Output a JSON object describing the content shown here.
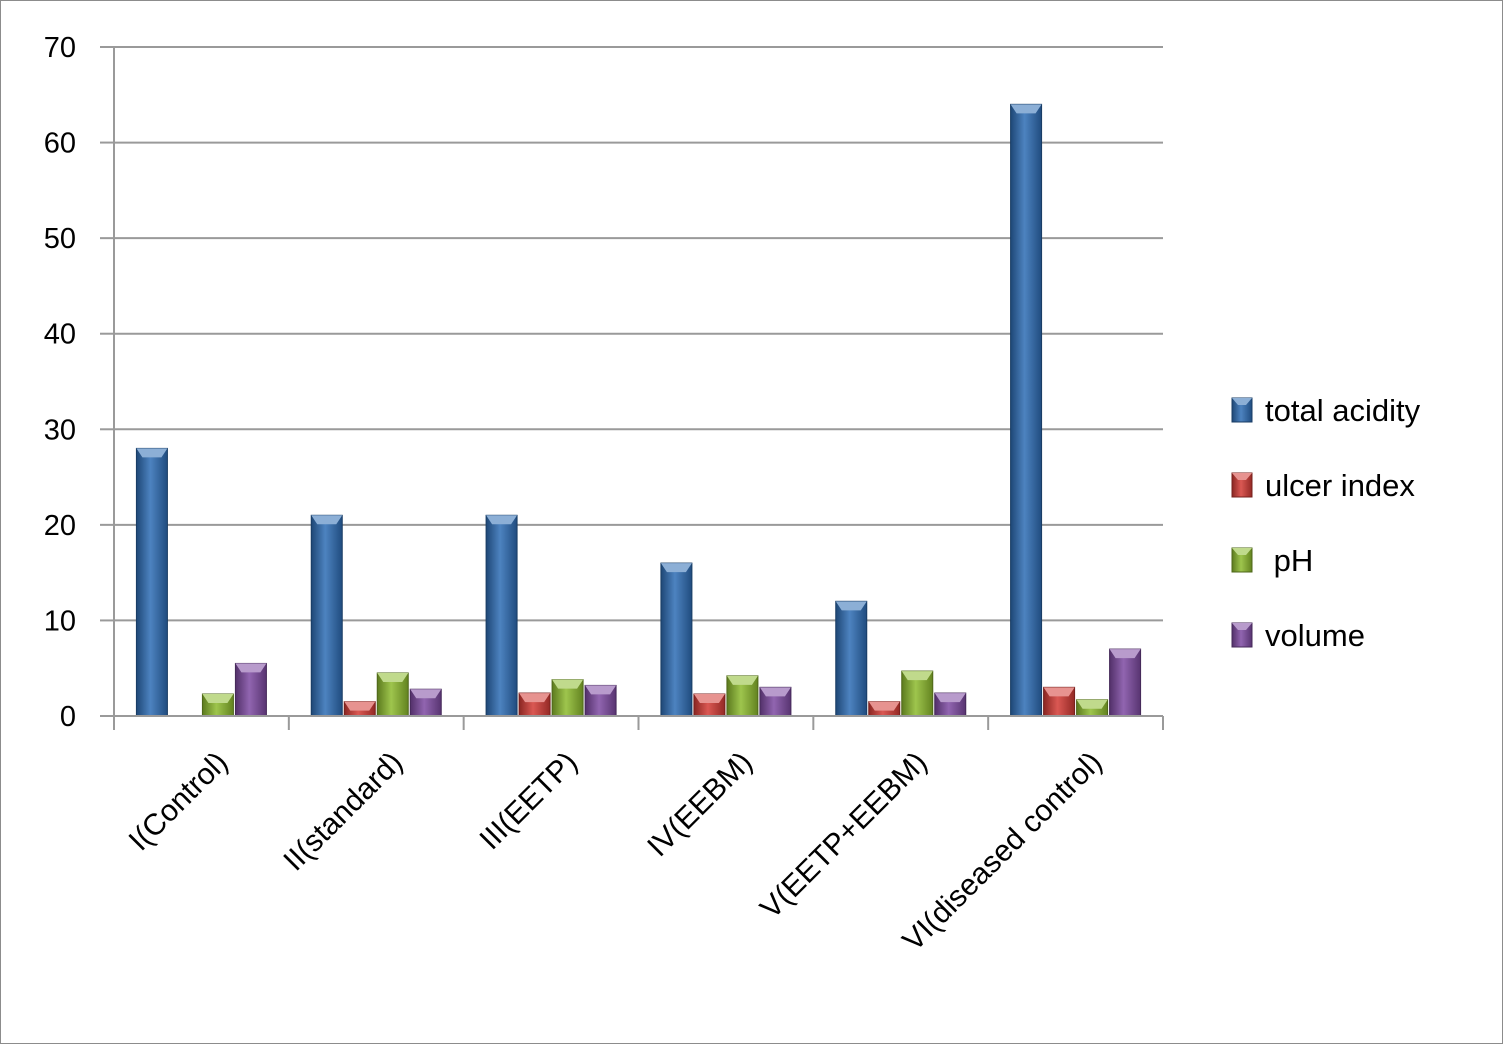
{
  "chart_data": {
    "type": "bar",
    "title": "",
    "xlabel": "",
    "ylabel": "",
    "ylim": [
      0,
      70
    ],
    "yticks": [
      0,
      10,
      20,
      30,
      40,
      50,
      60,
      70
    ],
    "grid": true,
    "legend_position": "right",
    "categories": [
      "I(Control)",
      "II(standard)",
      "III(EETP)",
      "IV(EEBM)",
      "V(EETP+EEBM)",
      "VI(diseased control)"
    ],
    "series": [
      {
        "name": "total acidity",
        "color": "#2e6db5",
        "values": [
          28,
          21,
          21,
          16,
          12,
          64
        ]
      },
      {
        "name": "ulcer index",
        "color": "#d43a35",
        "values": [
          0,
          1.5,
          2.4,
          2.3,
          1.5,
          3.0
        ]
      },
      {
        "name": " pH",
        "color": "#8dbb2e",
        "values": [
          2.3,
          4.5,
          3.8,
          4.2,
          4.7,
          1.7
        ]
      },
      {
        "name": "volume",
        "color": "#7e4aa2",
        "values": [
          5.5,
          2.8,
          3.2,
          3.0,
          2.4,
          7.0
        ]
      }
    ]
  }
}
